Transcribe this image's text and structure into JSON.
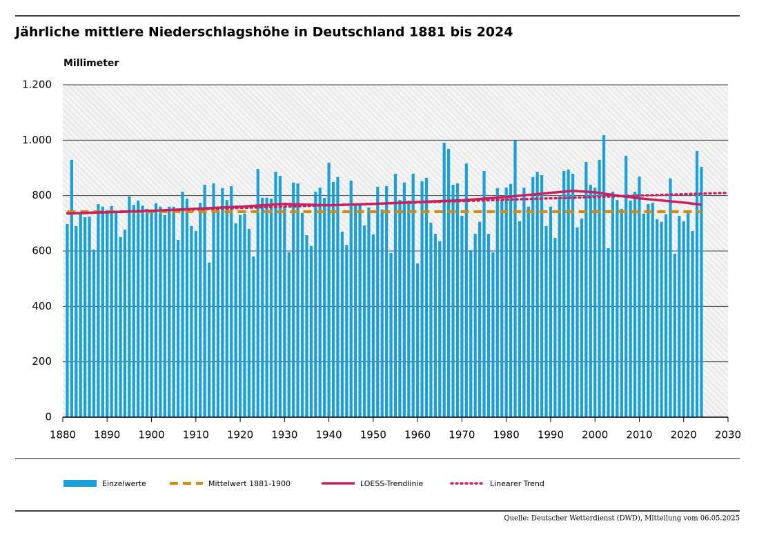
{
  "chart_data": {
    "type": "bar",
    "title": "Jährliche mittlere Niederschlagshöhe in Deutschland 1881 bis 2024",
    "y_label": "Millimeter",
    "source": "Quelle: Deutscher Wetterdienst (DWD), Mitteilung vom 06.05.2025",
    "xlim": [
      1880,
      2030
    ],
    "xticks": [
      1880,
      1890,
      1900,
      1910,
      1920,
      1930,
      1940,
      1950,
      1960,
      1970,
      1980,
      1990,
      2000,
      2010,
      2020,
      2030
    ],
    "ylim": [
      0,
      1200
    ],
    "yticks": [
      0,
      200,
      400,
      600,
      800,
      {
        "value": 1000,
        "label": "1.000"
      },
      {
        "value": 1200,
        "label": "1.200"
      }
    ],
    "grid": true,
    "legend": "bottom",
    "series": [
      {
        "name": "Einzelwerte",
        "type": "bar",
        "color": "#1a9fd6",
        "x": [
          1881,
          1882,
          1883,
          1884,
          1885,
          1886,
          1887,
          1888,
          1889,
          1890,
          1891,
          1892,
          1893,
          1894,
          1895,
          1896,
          1897,
          1898,
          1899,
          1900,
          1901,
          1902,
          1903,
          1904,
          1905,
          1906,
          1907,
          1908,
          1909,
          1910,
          1911,
          1912,
          1913,
          1914,
          1915,
          1916,
          1917,
          1918,
          1919,
          1920,
          1921,
          1922,
          1923,
          1924,
          1925,
          1926,
          1927,
          1928,
          1929,
          1930,
          1931,
          1932,
          1933,
          1934,
          1935,
          1936,
          1937,
          1938,
          1939,
          1940,
          1941,
          1942,
          1943,
          1944,
          1945,
          1946,
          1947,
          1948,
          1949,
          1950,
          1951,
          1952,
          1953,
          1954,
          1955,
          1956,
          1957,
          1958,
          1959,
          1960,
          1961,
          1962,
          1963,
          1964,
          1965,
          1966,
          1967,
          1968,
          1969,
          1970,
          1971,
          1972,
          1973,
          1974,
          1975,
          1976,
          1977,
          1978,
          1979,
          1980,
          1981,
          1982,
          1983,
          1984,
          1985,
          1986,
          1987,
          1988,
          1989,
          1990,
          1991,
          1992,
          1993,
          1994,
          1995,
          1996,
          1997,
          1998,
          1999,
          2000,
          2001,
          2002,
          2003,
          2004,
          2005,
          2006,
          2007,
          2008,
          2009,
          2010,
          2011,
          2012,
          2013,
          2014,
          2015,
          2016,
          2017,
          2018,
          2019,
          2020,
          2021,
          2022,
          2023,
          2024
        ],
        "values": [
          697,
          929,
          690,
          740,
          722,
          724,
          605,
          769,
          760,
          748,
          762,
          745,
          650,
          677,
          797,
          767,
          782,
          764,
          752,
          740,
          772,
          760,
          730,
          760,
          760,
          640,
          814,
          789,
          690,
          672,
          774,
          839,
          558,
          844,
          760,
          827,
          784,
          834,
          700,
          730,
          735,
          680,
          580,
          896,
          792,
          792,
          789,
          886,
          871,
          760,
          595,
          847,
          844,
          737,
          657,
          618,
          814,
          829,
          792,
          919,
          849,
          867,
          670,
          622,
          854,
          769,
          769,
          692,
          757,
          660,
          832,
          750,
          834,
          593,
          879,
          784,
          847,
          782,
          879,
          555,
          852,
          864,
          702,
          662,
          635,
          991,
          969,
          839,
          844,
          727,
          916,
          603,
          662,
          705,
          889,
          662,
          595,
          827,
          784,
          829,
          842,
          998,
          707,
          829,
          760,
          867,
          886,
          874,
          690,
          760,
          647,
          797,
          889,
          894,
          879,
          685,
          717,
          921,
          839,
          829,
          929,
          1018,
          610,
          814,
          784,
          752,
          944,
          782,
          814,
          869,
          735,
          769,
          774,
          715,
          705,
          732,
          862,
          590,
          727,
          707,
          747,
          672,
          961,
          904
        ]
      },
      {
        "name": "Mittelwert 1881-1900",
        "type": "dashed",
        "color": "#d98a0c",
        "x": [
          1881,
          2024
        ],
        "values": [
          742,
          742
        ]
      },
      {
        "name": "LOESS-Trendlinie",
        "type": "solid",
        "color": "#c8215d",
        "x": [
          1881,
          1900,
          1920,
          1930,
          1940,
          1950,
          1960,
          1970,
          1980,
          1990,
          1995,
          2000,
          2005,
          2010,
          2020,
          2024
        ],
        "values": [
          735,
          745,
          760,
          770,
          765,
          770,
          777,
          783,
          795,
          810,
          817,
          812,
          800,
          790,
          775,
          767
        ]
      },
      {
        "name": "Linearer Trend",
        "type": "dotted",
        "color": "#c8215d",
        "x": [
          1881,
          2030
        ],
        "values": [
          736,
          810
        ]
      }
    ]
  }
}
